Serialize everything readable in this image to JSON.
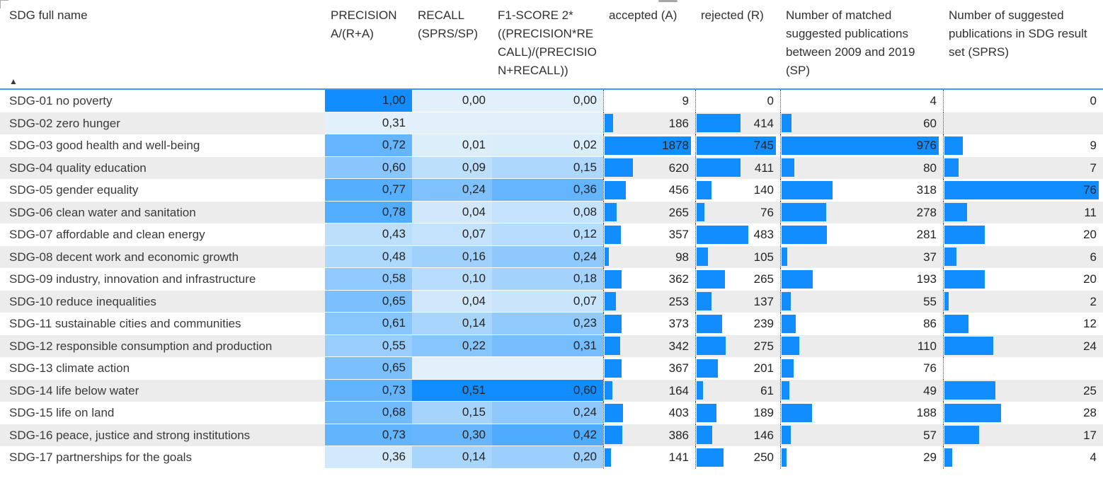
{
  "chart_data": {
    "type": "table",
    "sort": {
      "column": "SDG full name",
      "direction": "ascending",
      "icon": "▲"
    },
    "columns": [
      {
        "key": "name",
        "label": "SDG full name",
        "format": "text"
      },
      {
        "key": "precision",
        "label": "PRECISION A/(R+A)",
        "format": "gradient"
      },
      {
        "key": "recall",
        "label": "RECALL (SPRS/SP)",
        "format": "gradient"
      },
      {
        "key": "f1",
        "label": "F1-SCORE 2* ((PRECISION*RECALL)/(PRECISION+RECALL))",
        "format": "gradient"
      },
      {
        "key": "accepted",
        "label": "accepted (A)",
        "format": "bar"
      },
      {
        "key": "rejected",
        "label": "rejected (R)",
        "format": "bar"
      },
      {
        "key": "sp",
        "label": "Number of matched suggested publications between 2009 and 2019 (SP)",
        "format": "bar"
      },
      {
        "key": "sprs",
        "label": "Number of suggested publications in SDG result set (SPRS)",
        "format": "bar"
      }
    ],
    "rows": [
      {
        "name": "SDG-01 no poverty",
        "precision": "1,00",
        "recall": "0,00",
        "f1": "0,00",
        "accepted": 9,
        "rejected": 0,
        "sp": 4,
        "sprs": 0
      },
      {
        "name": "SDG-02 zero hunger",
        "precision": "0,31",
        "recall": null,
        "f1": null,
        "accepted": 186,
        "rejected": 414,
        "sp": 60,
        "sprs": null
      },
      {
        "name": "SDG-03 good health and well-being",
        "precision": "0,72",
        "recall": "0,01",
        "f1": "0,02",
        "accepted": 1878,
        "rejected": 745,
        "sp": 976,
        "sprs": 9
      },
      {
        "name": "SDG-04 quality education",
        "precision": "0,60",
        "recall": "0,09",
        "f1": "0,15",
        "accepted": 620,
        "rejected": 411,
        "sp": 80,
        "sprs": 7
      },
      {
        "name": "SDG-05 gender equality",
        "precision": "0,77",
        "recall": "0,24",
        "f1": "0,36",
        "accepted": 456,
        "rejected": 140,
        "sp": 318,
        "sprs": 76
      },
      {
        "name": "SDG-06 clean water and sanitation",
        "precision": "0,78",
        "recall": "0,04",
        "f1": "0,08",
        "accepted": 265,
        "rejected": 76,
        "sp": 278,
        "sprs": 11
      },
      {
        "name": "SDG-07 affordable and clean energy",
        "precision": "0,43",
        "recall": "0,07",
        "f1": "0,12",
        "accepted": 357,
        "rejected": 483,
        "sp": 281,
        "sprs": 20
      },
      {
        "name": "SDG-08 decent work and economic growth",
        "precision": "0,48",
        "recall": "0,16",
        "f1": "0,24",
        "accepted": 98,
        "rejected": 105,
        "sp": 37,
        "sprs": 6
      },
      {
        "name": "SDG-09 industry, innovation and infrastructure",
        "precision": "0,58",
        "recall": "0,10",
        "f1": "0,18",
        "accepted": 362,
        "rejected": 265,
        "sp": 193,
        "sprs": 20
      },
      {
        "name": "SDG-10 reduce inequalities",
        "precision": "0,65",
        "recall": "0,04",
        "f1": "0,07",
        "accepted": 253,
        "rejected": 137,
        "sp": 55,
        "sprs": 2
      },
      {
        "name": "SDG-11 sustainable cities and communities",
        "precision": "0,61",
        "recall": "0,14",
        "f1": "0,23",
        "accepted": 373,
        "rejected": 239,
        "sp": 86,
        "sprs": 12
      },
      {
        "name": "SDG-12 responsible consumption and production",
        "precision": "0,55",
        "recall": "0,22",
        "f1": "0,31",
        "accepted": 342,
        "rejected": 275,
        "sp": 110,
        "sprs": 24
      },
      {
        "name": "SDG-13 climate action",
        "precision": "0,65",
        "recall": null,
        "f1": null,
        "accepted": 367,
        "rejected": 201,
        "sp": 76,
        "sprs": null
      },
      {
        "name": "SDG-14 life below water",
        "precision": "0,73",
        "recall": "0,51",
        "f1": "0,60",
        "accepted": 164,
        "rejected": 61,
        "sp": 49,
        "sprs": 25
      },
      {
        "name": "SDG-15 life on land",
        "precision": "0,68",
        "recall": "0,15",
        "f1": "0,24",
        "accepted": 403,
        "rejected": 189,
        "sp": 188,
        "sprs": 28
      },
      {
        "name": "SDG-16 peace, justice and strong institutions",
        "precision": "0,73",
        "recall": "0,30",
        "f1": "0,42",
        "accepted": 386,
        "rejected": 146,
        "sp": 57,
        "sprs": 17
      },
      {
        "name": "SDG-17 partnerships for the goals",
        "precision": "0,36",
        "recall": "0,14",
        "f1": "0,20",
        "accepted": 141,
        "rejected": 250,
        "sp": 29,
        "sprs": 4
      }
    ]
  },
  "colors": {
    "bar_fill": "#118DFF",
    "gradient_min": "#E1F0FB",
    "gradient_max": "#118DFF",
    "stripe": "#ECECEC",
    "header_underline": "#3D9CF7",
    "text": "#252423"
  }
}
